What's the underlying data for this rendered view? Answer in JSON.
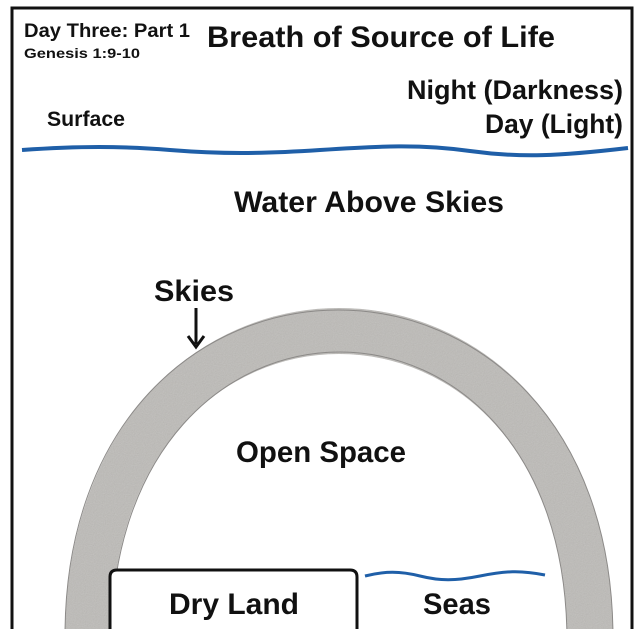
{
  "header": {
    "day": "Day Three: Part 1",
    "reference": "Genesis 1:9-10",
    "title": "Breath of Source of Life"
  },
  "labels": {
    "night": "Night (Darkness)",
    "day": "Day (Light)",
    "surface": "Surface",
    "water_above": "Water Above Skies",
    "skies": "Skies",
    "open_space": "Open Space",
    "dry_land": "Dry Land",
    "seas": "Seas"
  }
}
